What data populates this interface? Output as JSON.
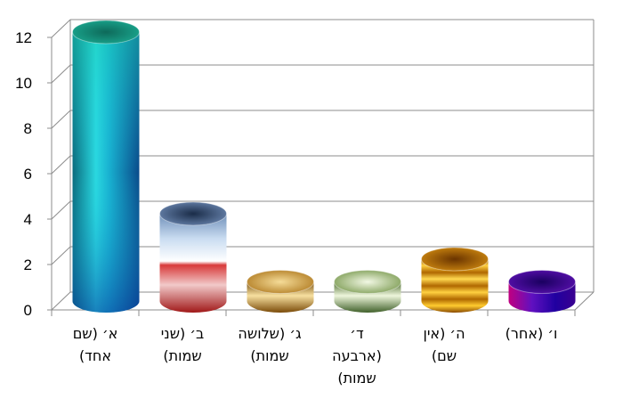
{
  "chart_data": {
    "type": "bar",
    "title": "",
    "xlabel": "",
    "ylabel": "",
    "ylim": [
      0,
      12
    ],
    "yticks": [
      0,
      2,
      4,
      6,
      8,
      10,
      12
    ],
    "yticks_text": [
      "0",
      "2",
      "4",
      "6",
      "8",
      "10",
      "12"
    ],
    "grid": true,
    "legend": "none",
    "categories": [
      [
        "א׳ (שם",
        "אחד)"
      ],
      [
        "ב׳ (שני",
        "שמות)"
      ],
      [
        "ג׳ (שלושה",
        "שמות)"
      ],
      [
        "ד׳",
        "(ארבעה",
        "שמות)"
      ],
      [
        "ה׳ (אין",
        "שם)"
      ],
      [
        "ו׳ (אחר)"
      ]
    ],
    "values": [
      12,
      4,
      1,
      1,
      2,
      1
    ],
    "colors": [
      "#1ab8c8",
      "#c5d9ee",
      "#d9a640",
      "#b6cf8e",
      "#e8a000",
      "#5a0ab0"
    ]
  }
}
